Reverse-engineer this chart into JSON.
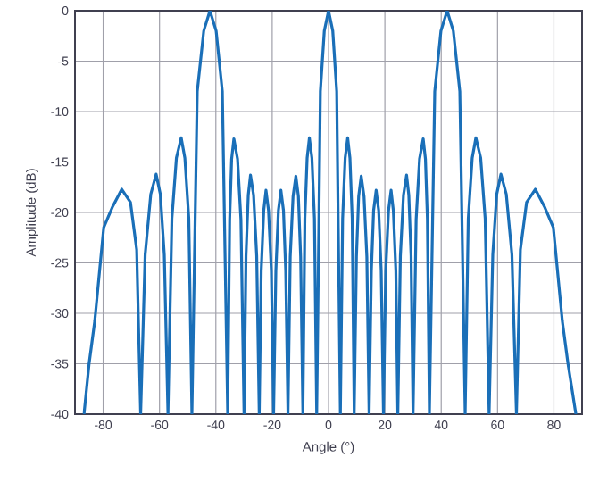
{
  "chart_data": {
    "type": "line",
    "xlabel": "Angle (°)",
    "ylabel": "Amplitude (dB)",
    "x": [
      -86.8,
      -85,
      -83,
      -79.8,
      -76.6,
      -73.4,
      -70.3,
      -68.1,
      -66.7,
      -65.1,
      -63.1,
      -61.2,
      -59.7,
      -58.3,
      -57.0,
      -55.6,
      -54.0,
      -52.3,
      -51.0,
      -49.6,
      -48.5,
      -46.6,
      -44.3,
      -42.1,
      -39.9,
      -37.7,
      -35.8,
      -35.1,
      -34.4,
      -33.6,
      -32.3,
      -31.1,
      -30.0,
      -29.3,
      -28.5,
      -27.7,
      -26.6,
      -25.5,
      -24.6,
      -23.9,
      -23.0,
      -22.2,
      -21.3,
      -20.3,
      -19.5,
      -18.7,
      -17.8,
      -16.9,
      -16.0,
      -15.2,
      -14.4,
      -13.6,
      -12.6,
      -11.6,
      -10.7,
      -9.9,
      -9.1,
      -8.4,
      -7.6,
      -6.8,
      -5.9,
      -5.0,
      -4.2,
      -2.9,
      -1.5,
      0,
      1.5,
      2.9,
      4.2,
      5.0,
      5.9,
      6.8,
      7.6,
      8.4,
      9.1,
      9.9,
      10.7,
      11.6,
      12.6,
      13.6,
      14.4,
      15.2,
      16.0,
      16.9,
      17.8,
      18.7,
      19.5,
      20.3,
      21.3,
      22.2,
      23.0,
      23.9,
      24.6,
      25.5,
      26.6,
      27.7,
      28.5,
      29.3,
      30.0,
      31.1,
      32.3,
      33.6,
      34.4,
      35.1,
      35.8,
      37.7,
      39.9,
      42.1,
      44.3,
      46.6,
      48.5,
      49.6,
      51.0,
      52.3,
      54.0,
      55.6,
      57.0,
      58.3,
      59.7,
      61.2,
      63.1,
      65.1,
      66.7,
      68.1,
      70.3,
      73.4,
      76.6,
      79.8,
      83,
      85,
      87.8
    ],
    "series": [
      {
        "color": "#1a6fb8",
        "values": [
          -40,
          -35,
          -30.8,
          -21.5,
          -19.4,
          -17.7,
          -19.0,
          -23.7,
          -40,
          -24.2,
          -18.2,
          -16.2,
          -18.2,
          -24.2,
          -40,
          -20.6,
          -14.6,
          -12.6,
          -14.6,
          -20.6,
          -40,
          -8,
          -2,
          0,
          -2,
          -8,
          -40,
          -20.7,
          -14.7,
          -12.7,
          -14.7,
          -20.7,
          -40,
          -24.3,
          -18.3,
          -16.3,
          -18.3,
          -24.3,
          -40,
          -25.8,
          -19.8,
          -17.8,
          -19.8,
          -25.8,
          -40,
          -25.8,
          -19.8,
          -17.8,
          -19.8,
          -25.8,
          -40,
          -24.4,
          -18.4,
          -16.4,
          -18.4,
          -24.4,
          -40,
          -20.6,
          -14.6,
          -12.6,
          -14.6,
          -20.6,
          -40,
          -8,
          -2,
          0,
          -2,
          -8,
          -40,
          -20.6,
          -14.6,
          -12.6,
          -14.6,
          -20.6,
          -40,
          -24.4,
          -18.4,
          -16.4,
          -18.4,
          -24.4,
          -40,
          -25.8,
          -19.8,
          -17.8,
          -19.8,
          -25.8,
          -40,
          -25.8,
          -19.8,
          -17.8,
          -19.8,
          -25.8,
          -40,
          -24.3,
          -18.3,
          -16.3,
          -18.3,
          -24.3,
          -40,
          -20.7,
          -14.7,
          -12.7,
          -14.7,
          -20.7,
          -40,
          -8,
          -2,
          0,
          -2,
          -8,
          -40,
          -20.6,
          -14.6,
          -12.6,
          -14.6,
          -20.6,
          -40,
          -24.2,
          -18.2,
          -16.2,
          -18.2,
          -24.2,
          -40,
          -23.7,
          -19.0,
          -17.7,
          -19.4,
          -21.5,
          -30.8,
          -35,
          -40
        ]
      }
    ],
    "xlim": [
      -90,
      90
    ],
    "ylim": [
      -40,
      0
    ],
    "xticks": [
      -80,
      -60,
      -40,
      -20,
      0,
      20,
      40,
      60,
      80
    ],
    "yticks": [
      -40,
      -35,
      -30,
      -25,
      -20,
      -15,
      -10,
      -5,
      0
    ],
    "grid": true
  }
}
